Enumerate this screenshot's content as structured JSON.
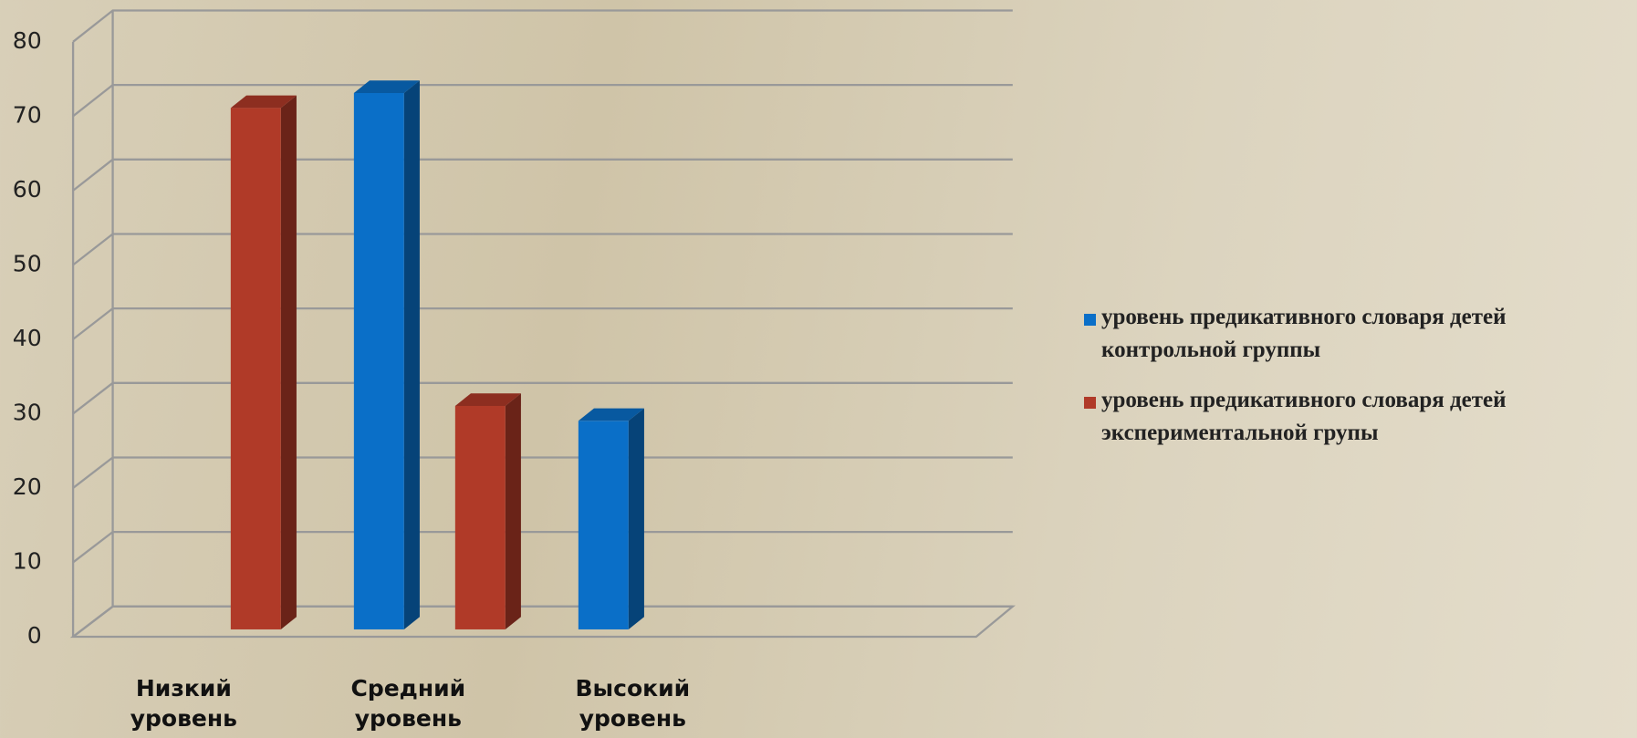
{
  "chart_data": {
    "type": "bar3d",
    "categories": [
      "Низкий уровень",
      "Средний уровень",
      "Высокий уровень"
    ],
    "series": [
      {
        "name": "уровень предикативного словаря детей контрольной группы",
        "color": "#0a6fc8",
        "values": [
          null,
          72,
          28
        ]
      },
      {
        "name": "уровень предикативного словаря детей экспериментальной групы",
        "color": "#b03a28",
        "values": [
          70,
          30,
          null
        ]
      }
    ],
    "ylim": [
      0,
      80
    ],
    "yticks": [
      0,
      10,
      20,
      30,
      40,
      50,
      60,
      70,
      80
    ],
    "grid": true,
    "legend": "right"
  }
}
